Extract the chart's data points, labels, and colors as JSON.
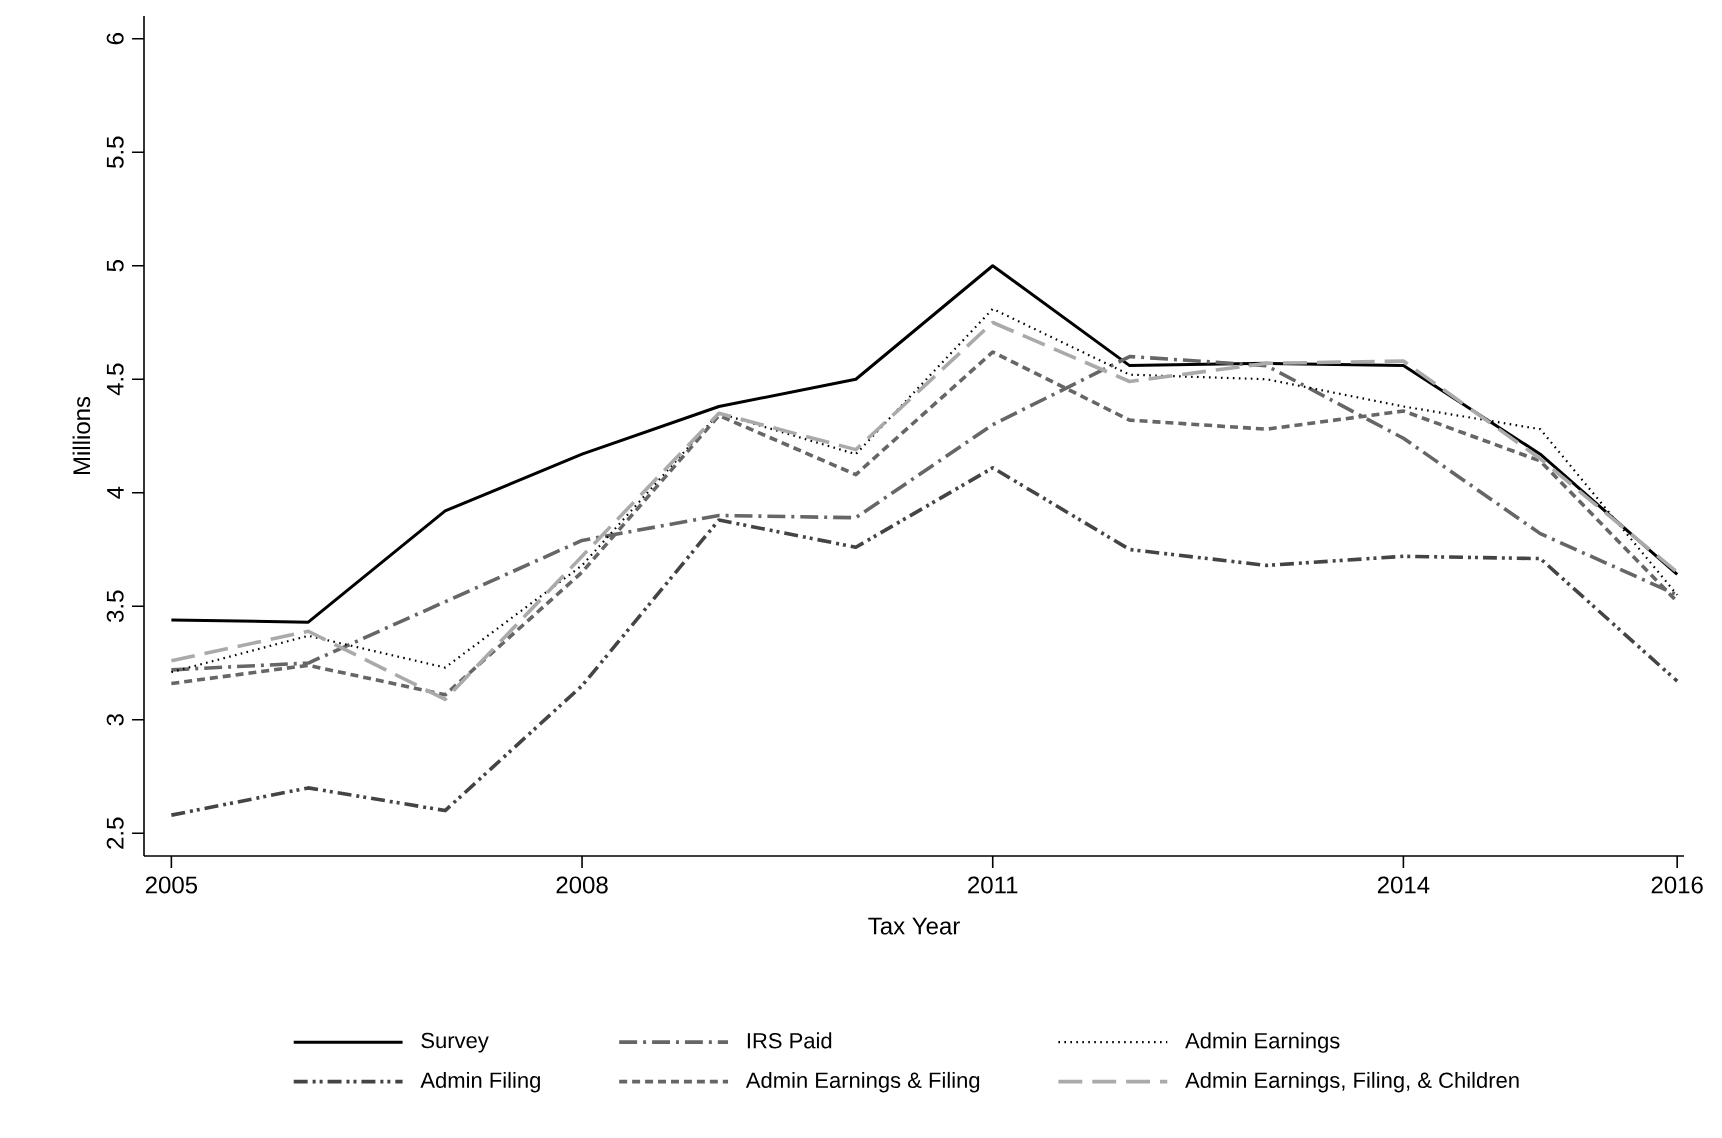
{
  "chart_data": {
    "type": "line",
    "xlabel": "Tax Year",
    "ylabel": "Millions",
    "x": [
      2005,
      2006,
      2007,
      2008,
      2009,
      2010,
      2011,
      2012,
      2013,
      2014,
      2015,
      2016
    ],
    "xlim": [
      2004.8,
      2016.05
    ],
    "xticks": [
      2005,
      2008,
      2011,
      2014,
      2016
    ],
    "ylim": [
      2.4,
      6.1
    ],
    "yticks": [
      2.5,
      3,
      3.5,
      4,
      4.5,
      5,
      5.5,
      6
    ],
    "legend": "bottom",
    "series": [
      {
        "name": "Survey",
        "color": "#000000",
        "line_style": "solid",
        "values": [
          3.44,
          3.43,
          3.92,
          4.17,
          4.38,
          4.5,
          5.0,
          4.56,
          4.57,
          4.56,
          4.17,
          3.64
        ]
      },
      {
        "name": "IRS Paid",
        "color": "#666666",
        "line_style": "dashdot",
        "values": [
          3.22,
          3.25,
          3.52,
          3.79,
          3.9,
          3.89,
          4.3,
          4.6,
          4.56,
          4.24,
          3.82,
          3.55
        ]
      },
      {
        "name": "Admin Earnings",
        "color": "#000000",
        "line_style": "dotted",
        "values": [
          3.21,
          3.37,
          3.23,
          3.68,
          4.35,
          4.17,
          4.81,
          4.52,
          4.5,
          4.38,
          4.28,
          3.55
        ]
      },
      {
        "name": "Admin Filing",
        "color": "#444444",
        "line_style": "dashdotdot",
        "values": [
          2.58,
          2.7,
          2.6,
          3.15,
          3.88,
          3.76,
          4.11,
          3.75,
          3.68,
          3.72,
          3.71,
          3.17
        ]
      },
      {
        "name": "Admin Earnings & Filing",
        "color": "#666666",
        "line_style": "dashed",
        "values": [
          3.16,
          3.24,
          3.11,
          3.65,
          4.34,
          4.08,
          4.62,
          4.32,
          4.28,
          4.36,
          4.14,
          3.52
        ]
      },
      {
        "name": "Admin Earnings, Filing, & Children",
        "color": "#aaaaaa",
        "line_style": "longdash",
        "values": [
          3.26,
          3.39,
          3.09,
          3.72,
          4.35,
          4.19,
          4.75,
          4.49,
          4.57,
          4.58,
          4.15,
          3.65
        ]
      }
    ]
  }
}
